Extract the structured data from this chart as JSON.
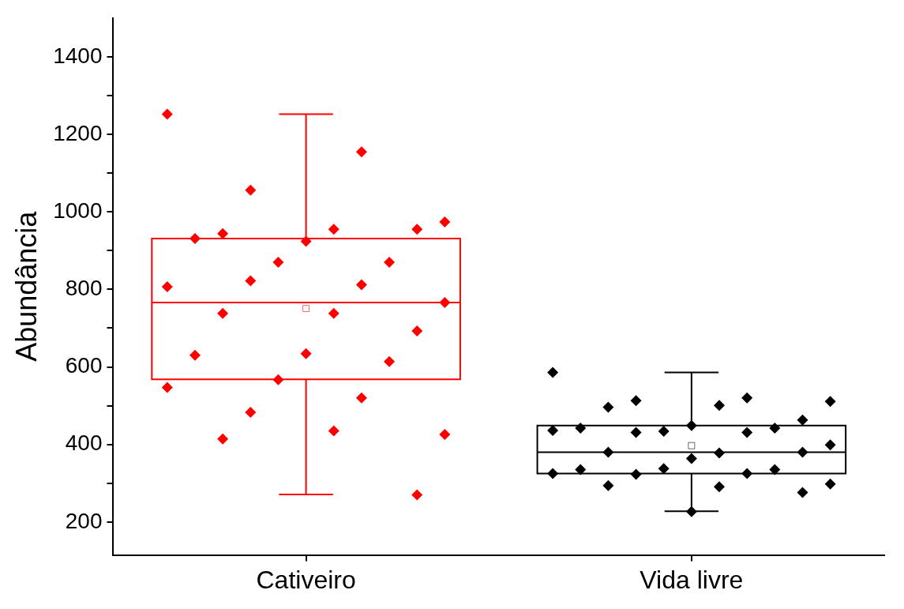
{
  "chart_data": {
    "type": "box",
    "ylabel": "Abundância",
    "categories": [
      "Cativeiro",
      "Vida livre"
    ],
    "boxes": [
      {
        "low": 271,
        "q1": 568,
        "median": 766,
        "q3": 931,
        "high": 1252,
        "mean": 751
      },
      {
        "low": 228,
        "q1": 325,
        "median": 380,
        "q3": 449,
        "high": 586,
        "mean": 397
      }
    ],
    "colors": [
      "#ff0000",
      "#000000"
    ],
    "series": [
      {
        "type": "scatter",
        "color": "#ff0000",
        "x": [
          "Cativeiro",
          "Cativeiro",
          "Cativeiro",
          "Cativeiro",
          "Cativeiro",
          "Cativeiro",
          "Cativeiro",
          "Cativeiro",
          "Cativeiro",
          "Cativeiro",
          "Cativeiro",
          "Cativeiro",
          "Cativeiro",
          "Cativeiro",
          "Cativeiro",
          "Cativeiro",
          "Cativeiro",
          "Cativeiro",
          "Cativeiro",
          "Cativeiro",
          "Cativeiro",
          "Cativeiro",
          "Cativeiro",
          "Cativeiro",
          "Cativeiro",
          "Cativeiro",
          "Cativeiro",
          "Cativeiro",
          "Cativeiro"
        ],
        "values": [
          1252,
          1155,
          1056,
          974,
          955,
          944,
          955,
          924,
          931,
          870,
          870,
          807,
          812,
          822,
          766,
          738,
          738,
          693,
          634,
          630,
          614,
          567,
          547,
          520,
          483,
          426,
          435,
          414,
          270
        ]
      },
      {
        "type": "scatter",
        "color": "#000000",
        "x": [
          "Vida livre",
          "Vida livre",
          "Vida livre",
          "Vida livre",
          "Vida livre",
          "Vida livre",
          "Vida livre",
          "Vida livre",
          "Vida livre",
          "Vida livre",
          "Vida livre",
          "Vida livre",
          "Vida livre",
          "Vida livre",
          "Vida livre",
          "Vida livre",
          "Vida livre",
          "Vida livre",
          "Vida livre",
          "Vida livre",
          "Vida livre",
          "Vida livre",
          "Vida livre",
          "Vida livre",
          "Vida livre",
          "Vida livre",
          "Vida livre",
          "Vida livre",
          "Vida livre",
          "Vida livre"
        ],
        "values": [
          586,
          520,
          513,
          511,
          501,
          496,
          463,
          449,
          442,
          442,
          434,
          436,
          431,
          431,
          399,
          378,
          380,
          380,
          364,
          335,
          335,
          338,
          325,
          325,
          323,
          298,
          291,
          294,
          276,
          227
        ]
      }
    ],
    "marker": "diamond",
    "ylim": [
      115,
      1500
    ],
    "yticks": [
      200,
      {
        "value": 300,
        "label": null
      },
      400,
      {
        "value": 500,
        "label": null
      },
      600,
      {
        "value": 700,
        "label": null
      },
      800,
      {
        "value": 900,
        "label": null
      },
      1000,
      {
        "value": 1100,
        "label": null
      },
      1200,
      {
        "value": 1300,
        "label": null
      },
      1400
    ]
  }
}
